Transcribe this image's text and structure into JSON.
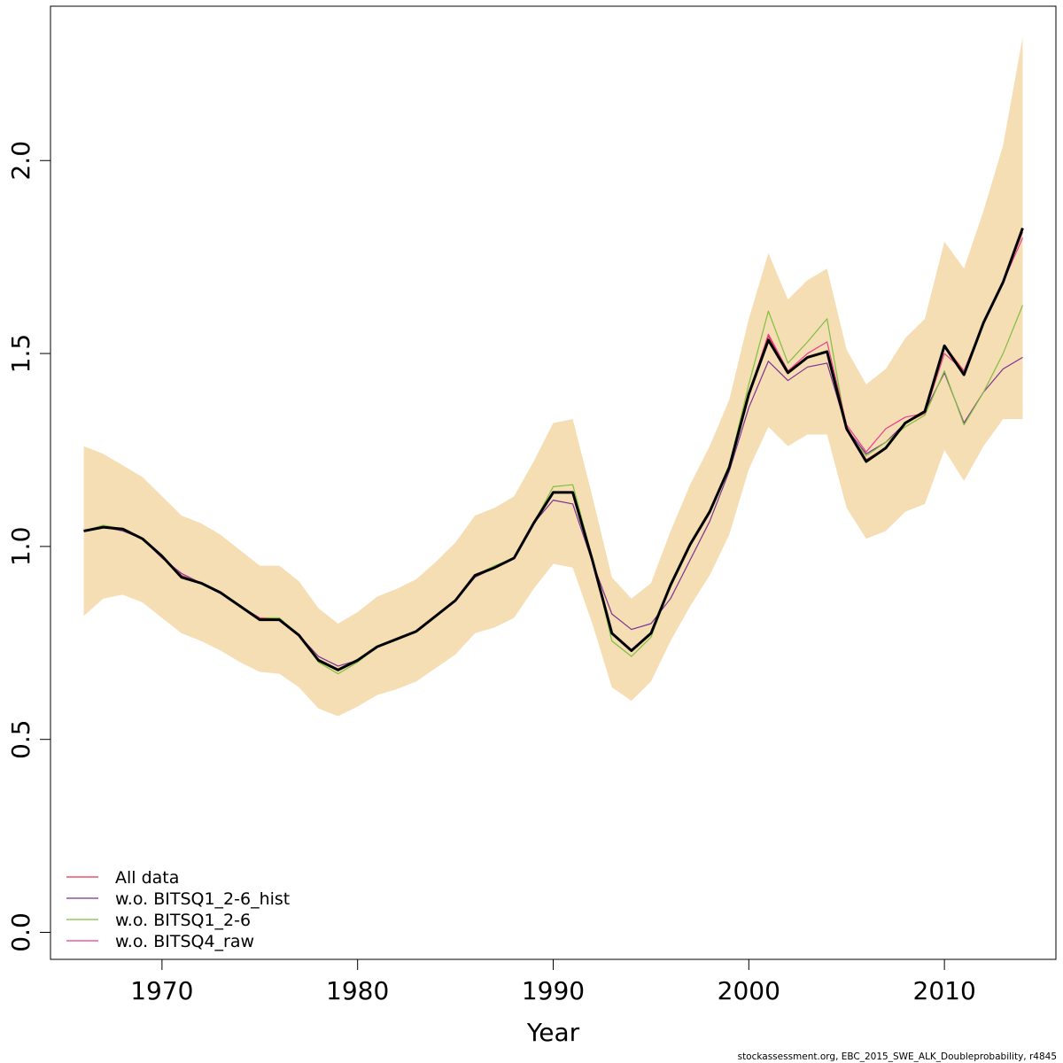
{
  "chart_data": {
    "type": "line",
    "xlabel": "Year",
    "ylabel": "",
    "xlim": [
      1964.3,
      2015.7
    ],
    "ylim": [
      -0.07,
      2.4
    ],
    "x_ticks": [
      1970,
      1980,
      1990,
      2000,
      2010
    ],
    "x_tick_labels": [
      "1970",
      "1980",
      "1990",
      "2000",
      "2010"
    ],
    "y_ticks": [
      0.0,
      0.5,
      1.0,
      1.5,
      2.0
    ],
    "y_tick_labels": [
      "0.0",
      "0.5",
      "1.0",
      "1.5",
      "2.0"
    ],
    "legend_position": "bottom-left",
    "x": [
      1966,
      1967,
      1968,
      1969,
      1970,
      1971,
      1972,
      1973,
      1974,
      1975,
      1976,
      1977,
      1978,
      1979,
      1980,
      1981,
      1982,
      1983,
      1984,
      1985,
      1986,
      1987,
      1988,
      1989,
      1990,
      1991,
      1992,
      1993,
      1994,
      1995,
      1996,
      1997,
      1998,
      1999,
      2000,
      2001,
      2002,
      2003,
      2004,
      2005,
      2006,
      2007,
      2008,
      2009,
      2010,
      2011,
      2012,
      2013,
      2014
    ],
    "band": {
      "color": "#F5DEB3",
      "upper": [
        1.26,
        1.24,
        1.21,
        1.18,
        1.13,
        1.08,
        1.06,
        1.03,
        0.99,
        0.95,
        0.95,
        0.91,
        0.84,
        0.8,
        0.83,
        0.87,
        0.89,
        0.915,
        0.96,
        1.01,
        1.08,
        1.1,
        1.13,
        1.22,
        1.32,
        1.33,
        1.13,
        0.92,
        0.865,
        0.905,
        1.04,
        1.16,
        1.26,
        1.38,
        1.59,
        1.76,
        1.64,
        1.69,
        1.72,
        1.51,
        1.42,
        1.46,
        1.54,
        1.59,
        1.79,
        1.72,
        1.87,
        2.04,
        2.32
      ],
      "lower": [
        0.82,
        0.865,
        0.875,
        0.855,
        0.815,
        0.775,
        0.755,
        0.73,
        0.7,
        0.675,
        0.67,
        0.635,
        0.58,
        0.56,
        0.585,
        0.615,
        0.63,
        0.65,
        0.685,
        0.72,
        0.775,
        0.79,
        0.815,
        0.89,
        0.955,
        0.945,
        0.8,
        0.635,
        0.6,
        0.65,
        0.755,
        0.845,
        0.925,
        1.03,
        1.2,
        1.31,
        1.26,
        1.29,
        1.29,
        1.1,
        1.02,
        1.04,
        1.09,
        1.11,
        1.25,
        1.17,
        1.26,
        1.33,
        1.33
      ]
    },
    "series": [
      {
        "name": "All data",
        "color": "#E8334A",
        "width": 1.2,
        "values": [
          1.04,
          1.05,
          1.045,
          1.02,
          0.975,
          0.925,
          0.905,
          0.88,
          0.845,
          0.815,
          0.81,
          0.77,
          0.705,
          0.68,
          0.705,
          0.74,
          0.76,
          0.78,
          0.82,
          0.86,
          0.925,
          0.945,
          0.97,
          1.06,
          1.14,
          1.14,
          0.965,
          0.775,
          0.73,
          0.775,
          0.9,
          1.005,
          1.09,
          1.205,
          1.395,
          1.545,
          1.455,
          1.49,
          1.505,
          1.31,
          1.225,
          1.255,
          1.32,
          1.345,
          1.52,
          1.455,
          1.58,
          1.685,
          1.815
        ]
      },
      {
        "name": "w.o. BITSQ1_2-6_hist",
        "color": "#7B3294",
        "width": 1.2,
        "values": [
          1.04,
          1.05,
          1.04,
          1.02,
          0.97,
          0.93,
          0.905,
          0.88,
          0.845,
          0.81,
          0.81,
          0.77,
          0.715,
          0.69,
          0.705,
          0.74,
          0.76,
          0.78,
          0.82,
          0.86,
          0.92,
          0.945,
          0.97,
          1.06,
          1.12,
          1.11,
          0.96,
          0.825,
          0.785,
          0.8,
          0.865,
          0.965,
          1.065,
          1.195,
          1.36,
          1.48,
          1.43,
          1.465,
          1.475,
          1.305,
          1.24,
          1.27,
          1.32,
          1.35,
          1.45,
          1.32,
          1.4,
          1.46,
          1.49
        ]
      },
      {
        "name": "w.o. BITSQ1_2-6",
        "color": "#7FBF3F",
        "width": 1.2,
        "values": [
          1.04,
          1.055,
          1.045,
          1.02,
          0.975,
          0.925,
          0.905,
          0.88,
          0.845,
          0.815,
          0.815,
          0.77,
          0.7,
          0.67,
          0.7,
          0.74,
          0.76,
          0.78,
          0.82,
          0.86,
          0.925,
          0.95,
          0.97,
          1.06,
          1.155,
          1.16,
          0.97,
          0.755,
          0.715,
          0.765,
          0.9,
          1.005,
          1.09,
          1.21,
          1.42,
          1.61,
          1.475,
          1.53,
          1.59,
          1.3,
          1.235,
          1.27,
          1.31,
          1.34,
          1.455,
          1.315,
          1.4,
          1.5,
          1.625
        ]
      },
      {
        "name": "w.o. BITSQ4_raw",
        "color": "#E83E8C",
        "width": 1.2,
        "values": [
          1.04,
          1.05,
          1.045,
          1.02,
          0.975,
          0.925,
          0.905,
          0.88,
          0.845,
          0.815,
          0.81,
          0.77,
          0.705,
          0.68,
          0.705,
          0.74,
          0.76,
          0.78,
          0.82,
          0.86,
          0.925,
          0.945,
          0.97,
          1.06,
          1.14,
          1.14,
          0.965,
          0.775,
          0.73,
          0.775,
          0.9,
          1.005,
          1.09,
          1.205,
          1.395,
          1.55,
          1.455,
          1.5,
          1.53,
          1.315,
          1.245,
          1.305,
          1.335,
          1.345,
          1.5,
          1.455,
          1.58,
          1.685,
          1.8
        ]
      },
      {
        "name": "",
        "color": "#000000",
        "width": 3,
        "values": [
          1.04,
          1.05,
          1.045,
          1.02,
          0.975,
          0.92,
          0.905,
          0.88,
          0.845,
          0.81,
          0.81,
          0.77,
          0.705,
          0.68,
          0.705,
          0.74,
          0.76,
          0.78,
          0.82,
          0.86,
          0.925,
          0.945,
          0.97,
          1.06,
          1.14,
          1.14,
          0.965,
          0.775,
          0.73,
          0.775,
          0.9,
          1.005,
          1.09,
          1.205,
          1.395,
          1.535,
          1.45,
          1.49,
          1.505,
          1.305,
          1.22,
          1.255,
          1.32,
          1.35,
          1.52,
          1.445,
          1.58,
          1.685,
          1.825
        ]
      }
    ],
    "legend": [
      {
        "label": "All data",
        "color": "#E8334A"
      },
      {
        "label": "w.o. BITSQ1_2-6_hist",
        "color": "#7B3294"
      },
      {
        "label": "w.o. BITSQ1_2-6",
        "color": "#7FBF3F"
      },
      {
        "label": "w.o. BITSQ4_raw",
        "color": "#E83E8C"
      }
    ],
    "credit": "stockassessment.org, EBC_2015_SWE_ALK_Doubleprobability, r4845"
  }
}
